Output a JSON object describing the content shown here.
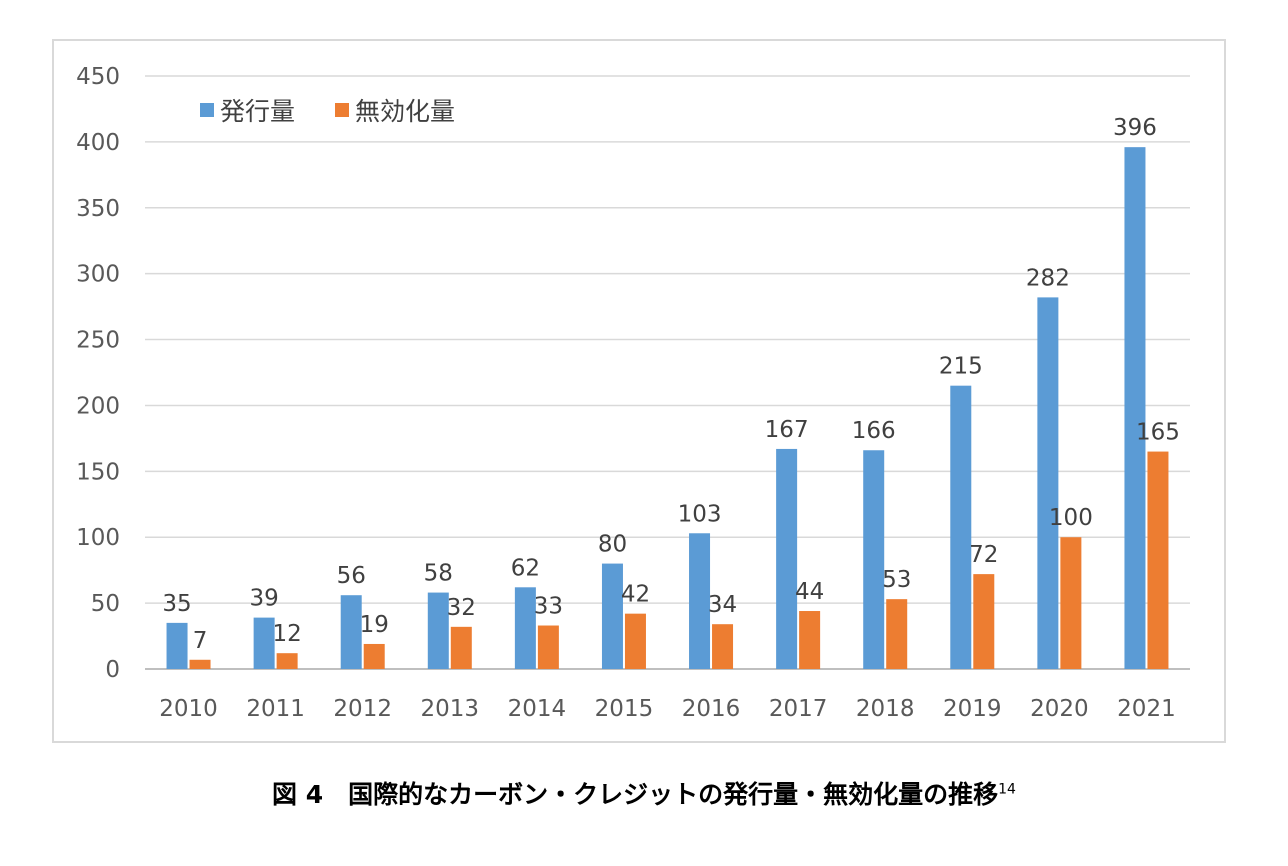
{
  "chart_data": {
    "type": "bar",
    "title": "",
    "xlabel": "",
    "ylabel": "",
    "categories": [
      "2010",
      "2011",
      "2012",
      "2013",
      "2014",
      "2015",
      "2016",
      "2017",
      "2018",
      "2019",
      "2020",
      "2021"
    ],
    "series": [
      {
        "name": "発行量",
        "color": "#5b9bd5",
        "values": [
          35,
          39,
          56,
          58,
          62,
          80,
          103,
          167,
          166,
          215,
          282,
          396
        ]
      },
      {
        "name": "無効化量",
        "color": "#ed7d31",
        "values": [
          7,
          12,
          19,
          32,
          33,
          42,
          34,
          44,
          53,
          72,
          100,
          165
        ]
      }
    ],
    "ylim": [
      0,
      450
    ],
    "yticks": [
      0,
      50,
      100,
      150,
      200,
      250,
      300,
      350,
      400,
      450
    ],
    "grid": true,
    "legend": "top-left"
  },
  "caption": {
    "text": "図 4　国際的なカーボン・クレジットの発行量・無効化量の推移",
    "footnote": "14"
  }
}
